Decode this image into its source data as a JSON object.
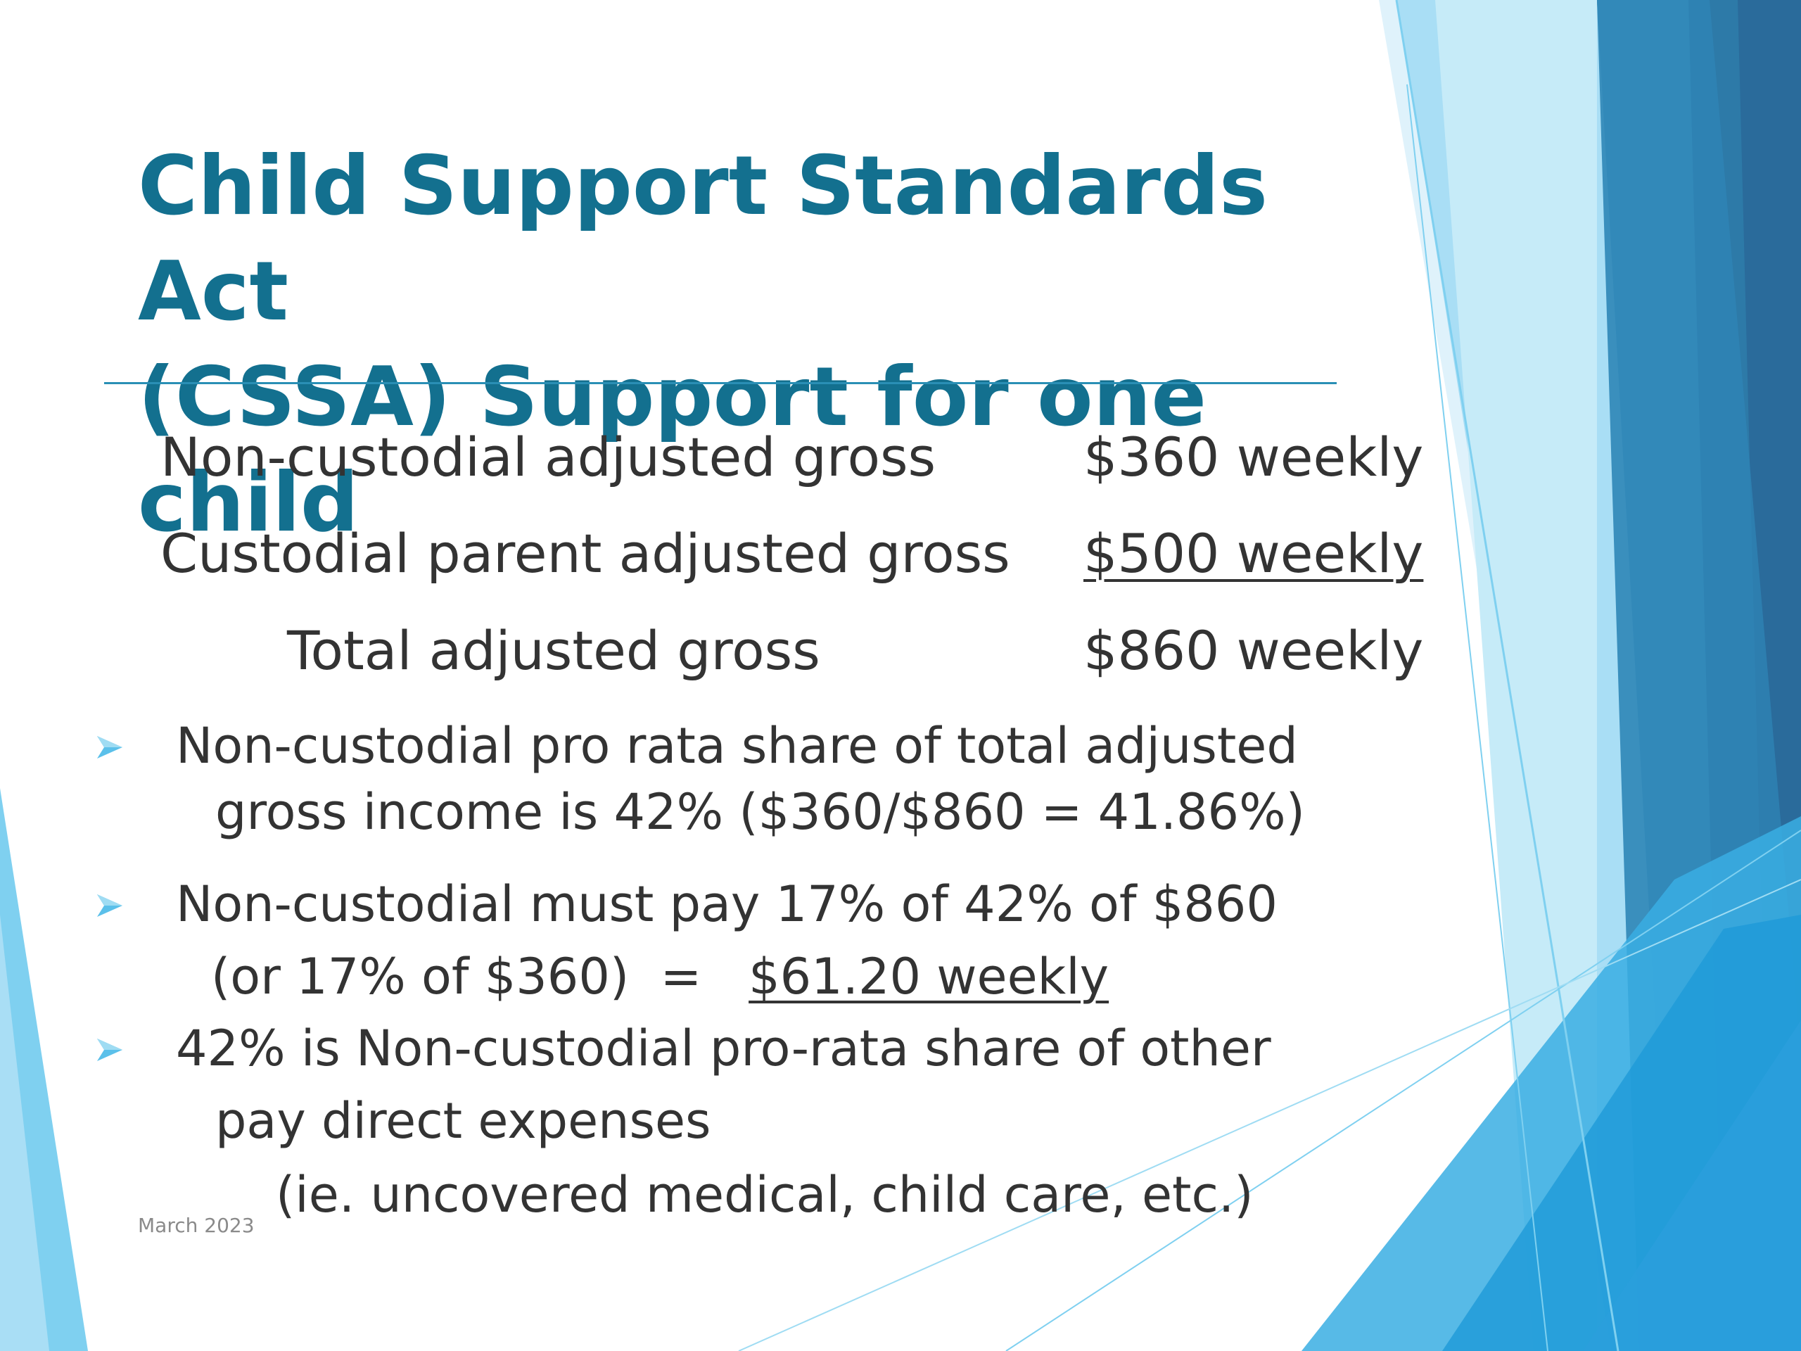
{
  "slide": {
    "title_line1": "Child Support Standards Act",
    "title_line2": "(CSSA) Support for one child",
    "rows": [
      {
        "label": "Non-custodial adjusted gross",
        "amount": "$360 weekly"
      },
      {
        "label": "Custodial parent adjusted gross",
        "amount": "$500 weekly"
      },
      {
        "label": "Total adjusted gross",
        "amount": "$860 weekly"
      }
    ],
    "bullets": [
      {
        "line1": "Non-custodial pro rata share of total adjusted",
        "line2": "gross income is 42% ($360/$860 = 41.86%)"
      },
      {
        "line1": "Non-custodial must pay 17% of 42% of $860",
        "line2_prefix": "(or 17% of $360)  =",
        "line2_amount": "$61.20 weekly"
      },
      {
        "line1": "42% is Non-custodial pro-rata share of other",
        "line2": "pay direct expenses",
        "line3": "(ie. uncovered medical, child care, etc.)"
      }
    ],
    "footer_date": "March 2023",
    "bullet_icon": "arrowhead-bullet-icon"
  },
  "colors": {
    "title": "#13708f",
    "text": "#333333",
    "accent_light": "#7fd0f0",
    "accent_dark": "#2b6b98"
  }
}
